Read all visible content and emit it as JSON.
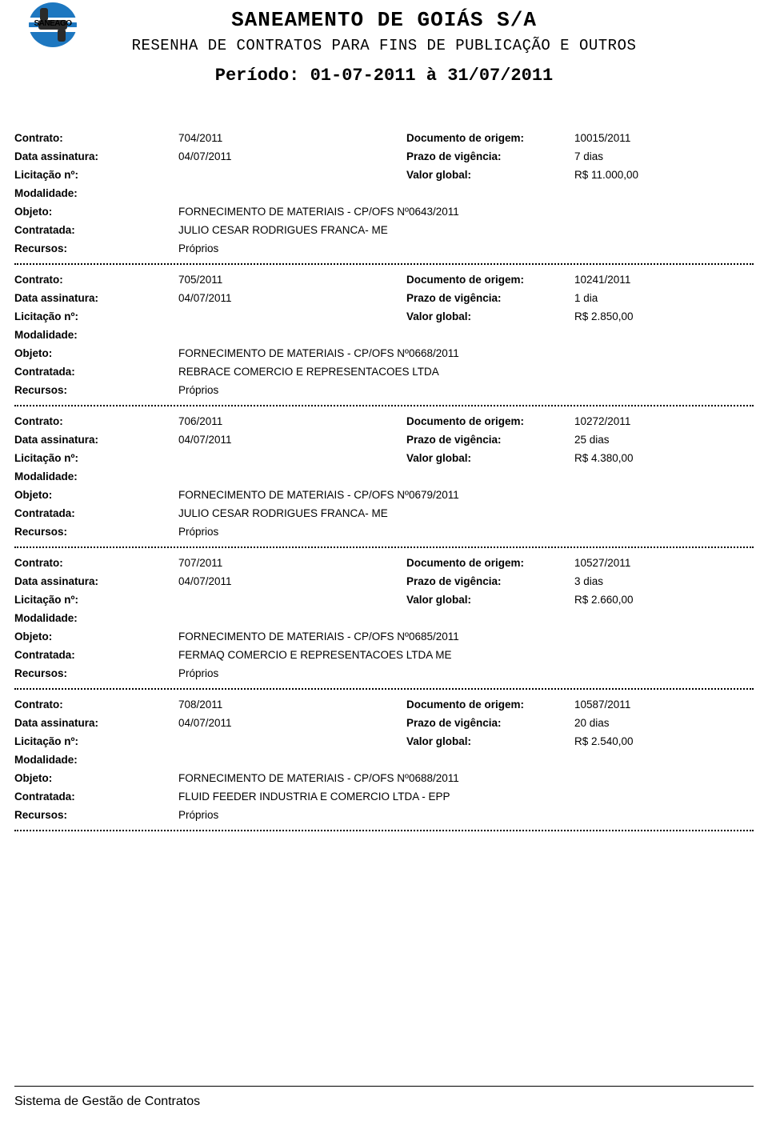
{
  "header": {
    "logo_text": "SANEAGO",
    "title1": "SANEAMENTO DE GOIÁS S/A",
    "title2": "RESENHA DE CONTRATOS PARA FINS DE PUBLICAÇÃO E OUTROS",
    "title3": "Período: 01-07-2011 à 31/07/2011"
  },
  "colors": {
    "logo_blue": "#1d77c0",
    "logo_dark": "#2a2a2a",
    "text": "#000000",
    "background": "#ffffff"
  },
  "labels": {
    "contrato": "Contrato:",
    "documento_origem": "Documento de origem:",
    "data_assinatura": "Data assinatura:",
    "prazo_vigencia": "Prazo de vigência:",
    "licitacao": "Licitação nº:",
    "valor_global": "Valor global:",
    "modalidade": "Modalidade:",
    "objeto": "Objeto:",
    "contratada": "Contratada:",
    "recursos": "Recursos:"
  },
  "contracts": [
    {
      "contrato": "704/2011",
      "documento_origem": "10015/2011",
      "data_assinatura": "04/07/2011",
      "prazo_vigencia": "7 dias",
      "licitacao": "",
      "valor_global": "R$ 11.000,00",
      "modalidade": "",
      "objeto": "FORNECIMENTO DE MATERIAIS - CP/OFS Nº0643/2011",
      "contratada": "JULIO CESAR RODRIGUES FRANCA- ME",
      "recursos": "Próprios"
    },
    {
      "contrato": "705/2011",
      "documento_origem": "10241/2011",
      "data_assinatura": "04/07/2011",
      "prazo_vigencia": "1 dia",
      "licitacao": "",
      "valor_global": "R$ 2.850,00",
      "modalidade": "",
      "objeto": "FORNECIMENTO DE MATERIAIS - CP/OFS Nº0668/2011",
      "contratada": "REBRACE COMERCIO E REPRESENTACOES LTDA",
      "recursos": "Próprios"
    },
    {
      "contrato": "706/2011",
      "documento_origem": "10272/2011",
      "data_assinatura": "04/07/2011",
      "prazo_vigencia": "25 dias",
      "licitacao": "",
      "valor_global": "R$ 4.380,00",
      "modalidade": "",
      "objeto": "FORNECIMENTO DE MATERIAIS - CP/OFS Nº0679/2011",
      "contratada": "JULIO CESAR RODRIGUES FRANCA- ME",
      "recursos": "Próprios"
    },
    {
      "contrato": "707/2011",
      "documento_origem": "10527/2011",
      "data_assinatura": "04/07/2011",
      "prazo_vigencia": "3 dias",
      "licitacao": "",
      "valor_global": "R$ 2.660,00",
      "modalidade": "",
      "objeto": "FORNECIMENTO DE MATERIAIS - CP/OFS Nº0685/2011",
      "contratada": "FERMAQ COMERCIO E REPRESENTACOES LTDA ME",
      "recursos": "Próprios"
    },
    {
      "contrato": "708/2011",
      "documento_origem": "10587/2011",
      "data_assinatura": "04/07/2011",
      "prazo_vigencia": "20 dias",
      "licitacao": "",
      "valor_global": "R$ 2.540,00",
      "modalidade": "",
      "objeto": "FORNECIMENTO DE MATERIAIS - CP/OFS Nº0688/2011",
      "contratada": "FLUID FEEDER INDUSTRIA E COMERCIO LTDA - EPP",
      "recursos": "Próprios"
    }
  ],
  "footer": {
    "text": "Sistema de Gestão de Contratos"
  }
}
